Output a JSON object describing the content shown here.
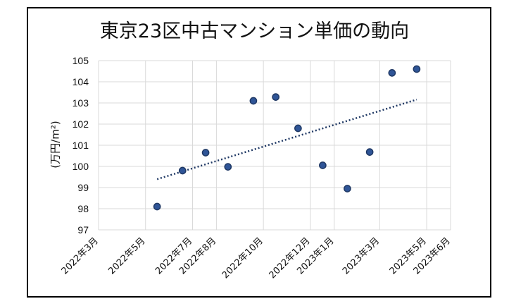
{
  "chart_data": {
    "type": "scatter",
    "title": "東京23区中古マンション単価の動向",
    "xlabel": "",
    "ylabel": "(万円/m²)",
    "ylim": [
      97,
      105
    ],
    "yticks": [
      97,
      98,
      99,
      100,
      101,
      102,
      103,
      104,
      105
    ],
    "xlim": [
      "2022-03-01",
      "2023-06-01"
    ],
    "xticks": [
      {
        "date": "2022-03-01",
        "label": "2022年3月"
      },
      {
        "date": "2022-05-01",
        "label": "2022年5月"
      },
      {
        "date": "2022-07-01",
        "label": "2022年7月"
      },
      {
        "date": "2022-08-01",
        "label": "2022年8月"
      },
      {
        "date": "2022-10-01",
        "label": "2022年10月"
      },
      {
        "date": "2022-12-01",
        "label": "2022年12月"
      },
      {
        "date": "2023-01-01",
        "label": "2023年1月"
      },
      {
        "date": "2023-03-01",
        "label": "2023年3月"
      },
      {
        "date": "2023-05-01",
        "label": "2023年5月"
      },
      {
        "date": "2023-06-01",
        "label": "2023年6月"
      }
    ],
    "series": [
      {
        "points": [
          {
            "x": "2022-05-16",
            "y": 98.1
          },
          {
            "x": "2022-06-18",
            "y": 99.8
          },
          {
            "x": "2022-07-18",
            "y": 100.65
          },
          {
            "x": "2022-08-16",
            "y": 99.98
          },
          {
            "x": "2022-09-18",
            "y": 103.1
          },
          {
            "x": "2022-10-17",
            "y": 103.28
          },
          {
            "x": "2022-11-15",
            "y": 101.8
          },
          {
            "x": "2022-12-17",
            "y": 100.05
          },
          {
            "x": "2023-01-18",
            "y": 98.95
          },
          {
            "x": "2023-02-16",
            "y": 100.68
          },
          {
            "x": "2023-03-17",
            "y": 104.42
          },
          {
            "x": "2023-04-18",
            "y": 104.6
          }
        ]
      }
    ],
    "trendline": {
      "type": "linear",
      "style": "dotted"
    },
    "grid": true,
    "colors": {
      "marker": "#2f5597",
      "marker_edge": "#1f3864",
      "trend": "#1f3864",
      "grid": "#d9d9d9"
    }
  }
}
